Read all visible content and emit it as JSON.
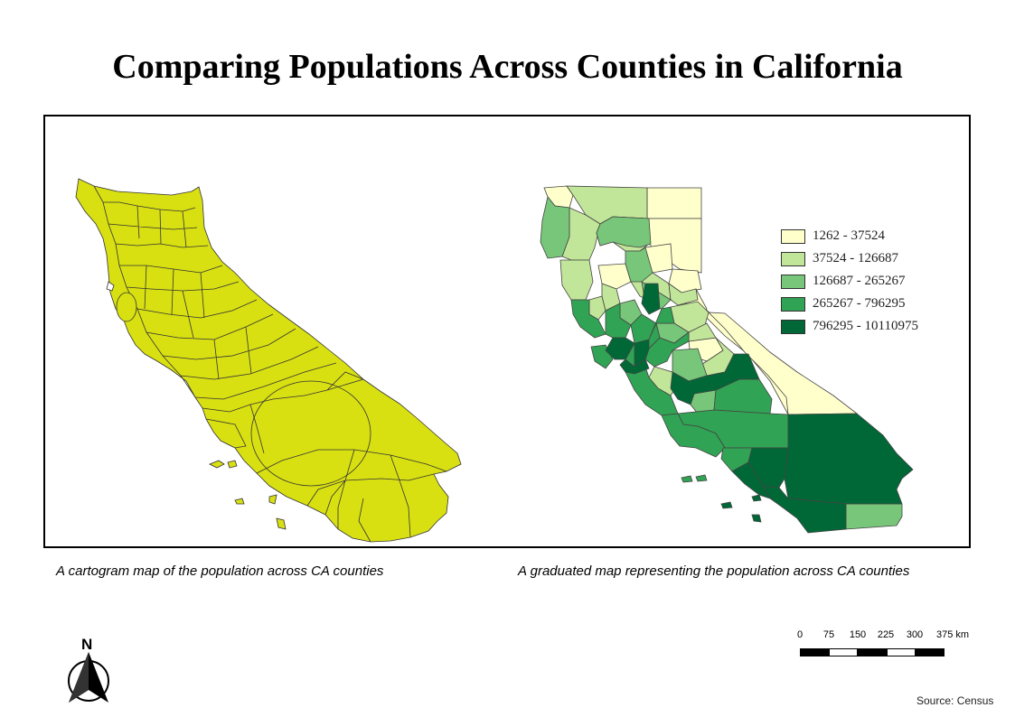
{
  "title": "Comparing Populations Across Counties in California",
  "captions": {
    "left": "A cartogram map of the population across CA counties",
    "right": "A graduated map representing the population across CA counties"
  },
  "legend": [
    {
      "label": "1262  -  37524",
      "color": "#ffffcc"
    },
    {
      "label": "37524  -  126687",
      "color": "#c2e699"
    },
    {
      "label": "126687  -  265267",
      "color": "#78c679"
    },
    {
      "label": "265267  -  796295",
      "color": "#31a354"
    },
    {
      "label": "796295  -  10110975",
      "color": "#006837"
    }
  ],
  "cartogram_color": "#d9e012",
  "north_arrow": {
    "letter": "N",
    "icon": "north-arrow-icon"
  },
  "scale_bar": {
    "labels": [
      "0",
      "75",
      "150",
      "225",
      "300",
      "375 km"
    ]
  },
  "source": "Source: Census"
}
